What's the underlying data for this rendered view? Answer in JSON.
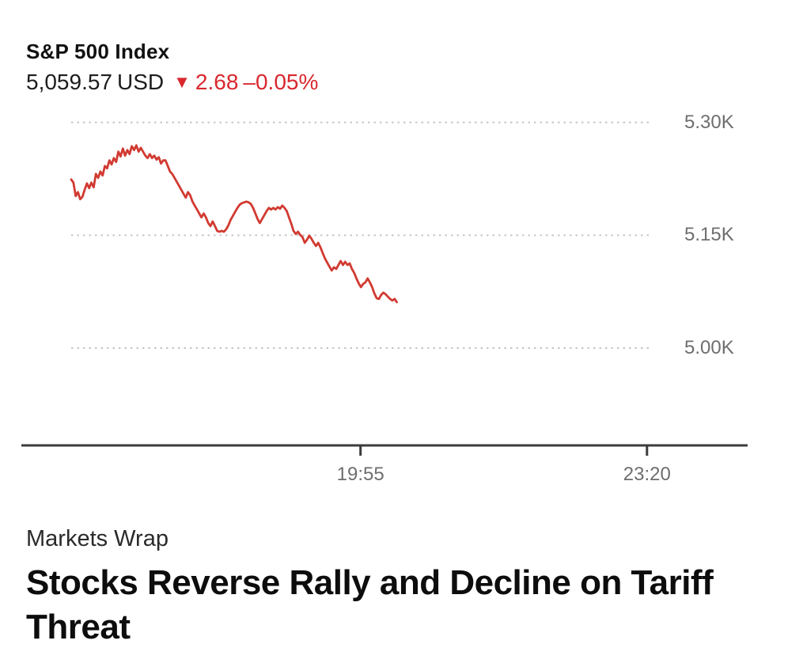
{
  "header": {
    "title": "S&P 500 Index",
    "price": "5,059.57",
    "currency": "USD",
    "change_icon": "down-triangle-icon",
    "change": "2.68",
    "change_pct": "–0.05%"
  },
  "chart_data": {
    "type": "line",
    "title": "S&P 500 Index intraday price",
    "grid": "dotted-horizontal",
    "legend": "none",
    "line_color": "#d13a31",
    "axis_color": "#3c3c3c",
    "grid_color": "#c6c6c6",
    "label_color": "#6e6e6e",
    "y_axis": {
      "side": "right",
      "domain": [
        4858,
        5326
      ],
      "ticks": [
        {
          "value": 5300,
          "label": "5.30K"
        },
        {
          "value": 5150,
          "label": "5.15K"
        },
        {
          "value": 5000,
          "label": "5.00K"
        }
      ]
    },
    "x_axis": {
      "domain_minutes": [
        988,
        1472
      ],
      "ticks": [
        {
          "minute": 1195,
          "label": "19:55"
        },
        {
          "minute": 1400,
          "label": "23:20"
        }
      ]
    },
    "series": [
      {
        "name": "S&P 500 Index",
        "start_time": "16:28",
        "end_time": "20:21",
        "start_minute": 988,
        "end_minute": 1221,
        "values": [
          5224.2,
          5220.0,
          5202.1,
          5207.4,
          5197.9,
          5201.1,
          5210.5,
          5218.9,
          5212.6,
          5220.0,
          5213.7,
          5231.6,
          5226.3,
          5234.7,
          5229.5,
          5242.1,
          5238.9,
          5249.5,
          5244.2,
          5252.6,
          5247.4,
          5261.1,
          5254.7,
          5265.3,
          5255.8,
          5263.2,
          5257.9,
          5268.4,
          5263.2,
          5269.5,
          5261.1,
          5266.3,
          5261.1,
          5255.8,
          5252.6,
          5257.9,
          5252.6,
          5255.8,
          5250.5,
          5253.7,
          5245.3,
          5249.5,
          5249.5,
          5242.1,
          5234.7,
          5231.6,
          5226.3,
          5221.1,
          5215.8,
          5210.5,
          5205.3,
          5200.0,
          5207.4,
          5203.2,
          5194.7,
          5189.5,
          5184.2,
          5179.0,
          5173.7,
          5179.0,
          5173.7,
          5166.3,
          5162.1,
          5168.4,
          5162.1,
          5155.8,
          5154.7,
          5155.8,
          5154.7,
          5157.9,
          5163.2,
          5170.5,
          5175.8,
          5181.1,
          5186.3,
          5190.5,
          5192.6,
          5193.7,
          5194.7,
          5193.7,
          5191.6,
          5186.3,
          5179.0,
          5171.6,
          5166.3,
          5171.6,
          5176.8,
          5182.1,
          5186.3,
          5184.2,
          5186.3,
          5184.2,
          5187.4,
          5185.3,
          5189.5,
          5186.3,
          5182.1,
          5173.7,
          5165.3,
          5155.8,
          5151.6,
          5154.7,
          5150.5,
          5147.4,
          5140.0,
          5144.2,
          5149.5,
          5145.3,
          5140.0,
          5135.8,
          5140.0,
          5133.7,
          5126.3,
          5119.0,
          5113.7,
          5108.4,
          5103.2,
          5107.4,
          5105.3,
          5110.5,
          5115.8,
          5110.5,
          5114.7,
          5110.5,
          5112.6,
          5105.3,
          5100.0,
          5092.6,
          5086.3,
          5081.1,
          5085.3,
          5087.4,
          5092.6,
          5087.4,
          5081.1,
          5072.6,
          5066.3,
          5065.3,
          5070.5,
          5073.7,
          5071.6,
          5068.4,
          5065.3,
          5063.2,
          5065.3,
          5061.1
        ]
      }
    ]
  },
  "footer": {
    "kicker": "Markets Wrap",
    "headline": "Stocks Reverse Rally and Decline on Tariff Threat"
  },
  "colors": {
    "accent_red": "#d9272e",
    "line_red": "#d13a31",
    "label_gray": "#6e6e6e",
    "axis_dark": "#3c3c3c",
    "text_black": "#111111"
  }
}
